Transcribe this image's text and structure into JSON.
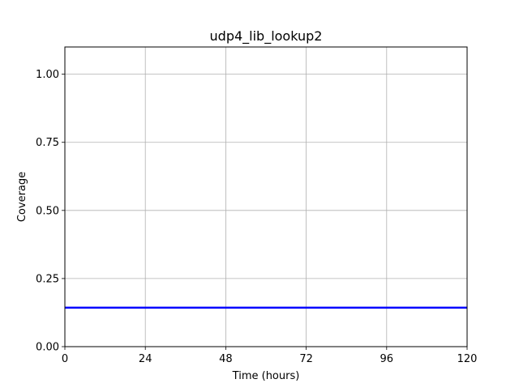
{
  "chart_data": {
    "type": "line",
    "title": "udp4_lib_lookup2",
    "xlabel": "Time (hours)",
    "ylabel": "Coverage",
    "xlim": [
      0,
      120
    ],
    "ylim": [
      0,
      1.1
    ],
    "xticks": [
      0,
      24,
      48,
      72,
      96,
      120
    ],
    "xtick_labels": [
      "0",
      "24",
      "48",
      "72",
      "96",
      "120"
    ],
    "yticks": [
      0,
      0.25,
      0.5,
      0.75,
      1.0
    ],
    "ytick_labels": [
      "0.00",
      "0.25",
      "0.50",
      "0.75",
      "1.00"
    ],
    "grid": true,
    "series": [
      {
        "color": "#0000ff",
        "x": [
          0,
          120
        ],
        "y": [
          0.143,
          0.143
        ]
      }
    ]
  }
}
